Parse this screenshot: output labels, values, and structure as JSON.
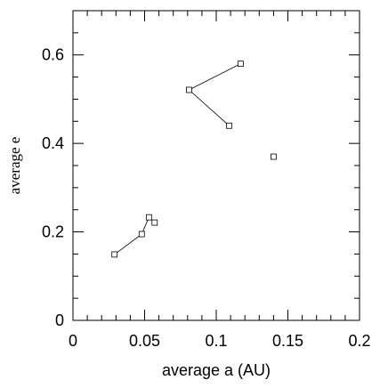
{
  "chart_data": {
    "type": "scatter",
    "x_label": "average a (AU)",
    "y_label": "average e",
    "xlim": [
      0,
      0.2
    ],
    "ylim": [
      0,
      0.7
    ],
    "xticks": [
      0,
      0.05,
      0.1,
      0.15,
      0.2
    ],
    "yticks": [
      0,
      0.2,
      0.4,
      0.6
    ],
    "xminorticks": [
      0.01,
      0.02,
      0.03,
      0.04,
      0.06,
      0.07,
      0.08,
      0.09,
      0.11,
      0.12,
      0.13,
      0.14,
      0.16,
      0.17,
      0.18,
      0.19
    ],
    "yminorticks": [
      0.05,
      0.1,
      0.15,
      0.25,
      0.3,
      0.35,
      0.45,
      0.5,
      0.55,
      0.65
    ],
    "series": [
      {
        "color": "#000000",
        "line": true,
        "x": [
          0.029,
          0.048,
          0.053
        ],
        "values": [
          0.149,
          0.195,
          0.233
        ]
      },
      {
        "color": "#000000",
        "line": true,
        "x": [
          0.117,
          0.081,
          0.109
        ],
        "values": [
          0.58,
          0.521,
          0.44
        ]
      },
      {
        "color": "#000000",
        "line": false,
        "x": [
          0.057,
          0.14
        ],
        "values": [
          0.221,
          0.37
        ]
      }
    ]
  }
}
